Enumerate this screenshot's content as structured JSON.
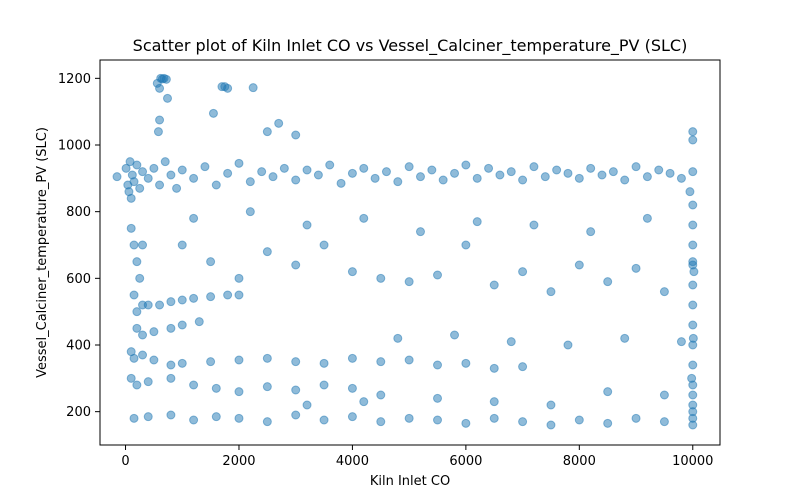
{
  "chart_data": {
    "type": "scatter",
    "title": "Scatter plot of Kiln Inlet CO vs Vessel_Calciner_temperature_PV (SLC)",
    "xlabel": "Kiln Inlet CO",
    "ylabel": "Vessel_Calciner_temperature_PV (SLC)",
    "xlim": [
      -450,
      10480
    ],
    "ylim": [
      100,
      1255
    ],
    "xticks": [
      0,
      2000,
      4000,
      6000,
      8000,
      10000
    ],
    "yticks": [
      200,
      400,
      600,
      800,
      1000,
      1200
    ],
    "grid": false,
    "marker_color": "#1f77b4",
    "marker_alpha": 0.5,
    "series": [
      {
        "values_note": "",
        "points": [
          [
            -150,
            905
          ],
          [
            10,
            930
          ],
          [
            40,
            880
          ],
          [
            60,
            860
          ],
          [
            80,
            950
          ],
          [
            100,
            840
          ],
          [
            120,
            910
          ],
          [
            150,
            890
          ],
          [
            200,
            940
          ],
          [
            250,
            870
          ],
          [
            300,
            920
          ],
          [
            400,
            900
          ],
          [
            500,
            930
          ],
          [
            600,
            880
          ],
          [
            700,
            950
          ],
          [
            800,
            910
          ],
          [
            900,
            870
          ],
          [
            1000,
            925
          ],
          [
            1200,
            900
          ],
          [
            1400,
            935
          ],
          [
            1600,
            880
          ],
          [
            1800,
            915
          ],
          [
            2000,
            945
          ],
          [
            2200,
            890
          ],
          [
            2400,
            920
          ],
          [
            2600,
            905
          ],
          [
            2800,
            930
          ],
          [
            3000,
            895
          ],
          [
            3200,
            925
          ],
          [
            3400,
            910
          ],
          [
            3600,
            940
          ],
          [
            3800,
            885
          ],
          [
            4000,
            915
          ],
          [
            4200,
            930
          ],
          [
            4400,
            900
          ],
          [
            4600,
            920
          ],
          [
            4800,
            890
          ],
          [
            5000,
            935
          ],
          [
            5200,
            905
          ],
          [
            5400,
            925
          ],
          [
            5600,
            895
          ],
          [
            5800,
            915
          ],
          [
            6000,
            940
          ],
          [
            6200,
            900
          ],
          [
            6400,
            930
          ],
          [
            6600,
            910
          ],
          [
            6800,
            920
          ],
          [
            7000,
            895
          ],
          [
            7200,
            935
          ],
          [
            7400,
            905
          ],
          [
            7600,
            925
          ],
          [
            7800,
            915
          ],
          [
            8000,
            900
          ],
          [
            8200,
            930
          ],
          [
            8400,
            910
          ],
          [
            8600,
            920
          ],
          [
            8800,
            895
          ],
          [
            9000,
            935
          ],
          [
            9200,
            905
          ],
          [
            9400,
            925
          ],
          [
            9600,
            915
          ],
          [
            9800,
            900
          ],
          [
            10000,
            920
          ],
          [
            620,
            1200
          ],
          [
            650,
            1198
          ],
          [
            680,
            1200
          ],
          [
            720,
            1197
          ],
          [
            560,
            1185
          ],
          [
            600,
            1170
          ],
          [
            740,
            1140
          ],
          [
            1700,
            1175
          ],
          [
            1750,
            1175
          ],
          [
            1800,
            1170
          ],
          [
            2250,
            1172
          ],
          [
            1550,
            1095
          ],
          [
            2700,
            1065
          ],
          [
            600,
            1075
          ],
          [
            580,
            1040
          ],
          [
            10000,
            1040
          ],
          [
            10000,
            1015
          ],
          [
            2500,
            1040
          ],
          [
            3000,
            1030
          ],
          [
            100,
            750
          ],
          [
            150,
            700
          ],
          [
            200,
            650
          ],
          [
            250,
            600
          ],
          [
            300,
            700
          ],
          [
            150,
            550
          ],
          [
            200,
            500
          ],
          [
            300,
            520
          ],
          [
            400,
            520
          ],
          [
            600,
            520
          ],
          [
            800,
            530
          ],
          [
            1000,
            535
          ],
          [
            1200,
            540
          ],
          [
            1500,
            545
          ],
          [
            1800,
            550
          ],
          [
            2000,
            550
          ],
          [
            200,
            450
          ],
          [
            300,
            430
          ],
          [
            500,
            440
          ],
          [
            800,
            450
          ],
          [
            1000,
            460
          ],
          [
            1300,
            470
          ],
          [
            100,
            380
          ],
          [
            150,
            360
          ],
          [
            300,
            370
          ],
          [
            500,
            355
          ],
          [
            800,
            340
          ],
          [
            1000,
            345
          ],
          [
            1500,
            350
          ],
          [
            2000,
            355
          ],
          [
            2500,
            360
          ],
          [
            3000,
            350
          ],
          [
            3500,
            345
          ],
          [
            4000,
            360
          ],
          [
            4500,
            350
          ],
          [
            5000,
            355
          ],
          [
            5500,
            340
          ],
          [
            6000,
            345
          ],
          [
            6500,
            330
          ],
          [
            7000,
            335
          ],
          [
            100,
            300
          ],
          [
            200,
            280
          ],
          [
            400,
            290
          ],
          [
            800,
            300
          ],
          [
            1200,
            280
          ],
          [
            1600,
            270
          ],
          [
            2000,
            260
          ],
          [
            2500,
            275
          ],
          [
            3000,
            265
          ],
          [
            3500,
            280
          ],
          [
            4000,
            270
          ],
          [
            150,
            180
          ],
          [
            400,
            185
          ],
          [
            800,
            190
          ],
          [
            1200,
            175
          ],
          [
            1600,
            185
          ],
          [
            2000,
            180
          ],
          [
            2500,
            170
          ],
          [
            3000,
            190
          ],
          [
            3500,
            175
          ],
          [
            4000,
            185
          ],
          [
            4500,
            170
          ],
          [
            5000,
            180
          ],
          [
            5500,
            175
          ],
          [
            6000,
            165
          ],
          [
            6500,
            180
          ],
          [
            7000,
            170
          ],
          [
            7500,
            160
          ],
          [
            8000,
            175
          ],
          [
            8500,
            165
          ],
          [
            9000,
            180
          ],
          [
            9500,
            170
          ],
          [
            10000,
            160
          ],
          [
            1000,
            700
          ],
          [
            1500,
            650
          ],
          [
            2000,
            600
          ],
          [
            2500,
            680
          ],
          [
            3000,
            640
          ],
          [
            3500,
            700
          ],
          [
            4000,
            620
          ],
          [
            4500,
            600
          ],
          [
            5000,
            590
          ],
          [
            5500,
            610
          ],
          [
            6000,
            700
          ],
          [
            6500,
            580
          ],
          [
            7000,
            620
          ],
          [
            7500,
            560
          ],
          [
            8000,
            640
          ],
          [
            8500,
            590
          ],
          [
            9000,
            630
          ],
          [
            9500,
            560
          ],
          [
            10000,
            650
          ],
          [
            1200,
            780
          ],
          [
            2200,
            800
          ],
          [
            3200,
            760
          ],
          [
            4200,
            780
          ],
          [
            5200,
            740
          ],
          [
            6200,
            770
          ],
          [
            7200,
            760
          ],
          [
            8200,
            740
          ],
          [
            9200,
            780
          ],
          [
            4800,
            420
          ],
          [
            5800,
            430
          ],
          [
            6800,
            410
          ],
          [
            7800,
            400
          ],
          [
            8800,
            420
          ],
          [
            9800,
            410
          ],
          [
            4500,
            250
          ],
          [
            5500,
            240
          ],
          [
            6500,
            230
          ],
          [
            7500,
            220
          ],
          [
            8500,
            260
          ],
          [
            9500,
            250
          ],
          [
            3200,
            220
          ],
          [
            4200,
            230
          ],
          [
            10000,
            820
          ],
          [
            10000,
            760
          ],
          [
            10000,
            700
          ],
          [
            10000,
            640
          ],
          [
            10000,
            580
          ],
          [
            10000,
            520
          ],
          [
            10000,
            460
          ],
          [
            10000,
            400
          ],
          [
            10000,
            340
          ],
          [
            10000,
            280
          ],
          [
            10000,
            220
          ],
          [
            10000,
            180
          ],
          [
            9950,
            860
          ],
          [
            10020,
            620
          ],
          [
            10010,
            420
          ],
          [
            9980,
            300
          ],
          [
            10000,
            250
          ],
          [
            10000,
            200
          ]
        ]
      }
    ]
  }
}
